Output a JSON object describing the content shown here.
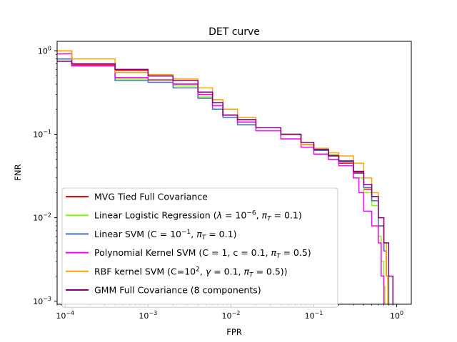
{
  "chart_data": {
    "type": "line",
    "title": "DET curve",
    "xlabel": "FPR",
    "ylabel": "FNR",
    "xscale": "log",
    "yscale": "log",
    "xlim": [
      8e-05,
      1.5
    ],
    "ylim": [
      0.00092,
      1.3
    ],
    "xticks": [
      {
        "value": 0.0001,
        "mant": "10",
        "exp": "−4"
      },
      {
        "value": 0.001,
        "mant": "10",
        "exp": "−3"
      },
      {
        "value": 0.01,
        "mant": "10",
        "exp": "−2"
      },
      {
        "value": 0.1,
        "mant": "10",
        "exp": "−1"
      },
      {
        "value": 1,
        "mant": "10",
        "exp": "0"
      }
    ],
    "yticks": [
      {
        "value": 0.001,
        "mant": "10",
        "exp": "−3"
      },
      {
        "value": 0.01,
        "mant": "10",
        "exp": "−2"
      },
      {
        "value": 0.1,
        "mant": "10",
        "exp": "−1"
      },
      {
        "value": 1,
        "mant": "10",
        "exp": "0"
      }
    ],
    "grid": false,
    "legend_position": "lower-left",
    "series": [
      {
        "name": "MVG Tied Full Covariance",
        "legend_parts": [
          {
            "t": "MVG Tied Full Covariance"
          }
        ],
        "color": "#ff0000",
        "points": [
          [
            8e-05,
            1.0
          ],
          [
            0.00012,
            1.0
          ],
          [
            0.00012,
            0.68
          ],
          [
            0.0004,
            0.68
          ],
          [
            0.0004,
            0.58
          ],
          [
            0.001,
            0.5
          ],
          [
            0.002,
            0.4
          ],
          [
            0.004,
            0.3
          ],
          [
            0.006,
            0.22
          ],
          [
            0.008,
            0.17
          ],
          [
            0.012,
            0.14
          ],
          [
            0.02,
            0.12
          ],
          [
            0.04,
            0.1
          ],
          [
            0.07,
            0.075
          ],
          [
            0.1,
            0.065
          ],
          [
            0.15,
            0.055
          ],
          [
            0.2,
            0.045
          ],
          [
            0.3,
            0.035
          ],
          [
            0.4,
            0.022
          ],
          [
            0.5,
            0.016
          ],
          [
            0.6,
            0.008
          ],
          [
            0.7,
            0.004
          ],
          [
            0.75,
            0.002
          ],
          [
            0.8,
            0.0009
          ]
        ]
      },
      {
        "name": "Linear Logistic Regression (λ = 10^−6, π_T = 0.1)",
        "legend_parts": [
          {
            "t": "Linear Logistic Regression ("
          },
          {
            "t": "λ",
            "i": true
          },
          {
            "t": " = 10"
          },
          {
            "t": "−6",
            "sup": true
          },
          {
            "t": ", "
          },
          {
            "t": "π",
            "i": true
          },
          {
            "t": "T",
            "i": true,
            "sub": true
          },
          {
            "t": " = 0.1)"
          }
        ],
        "color": "#7cfc00",
        "points": [
          [
            8e-05,
            1.0
          ],
          [
            0.00012,
            1.0
          ],
          [
            0.00012,
            0.66
          ],
          [
            0.0004,
            0.66
          ],
          [
            0.0004,
            0.46
          ],
          [
            0.001,
            0.44
          ],
          [
            0.002,
            0.38
          ],
          [
            0.004,
            0.28
          ],
          [
            0.006,
            0.22
          ],
          [
            0.008,
            0.17
          ],
          [
            0.012,
            0.13
          ],
          [
            0.02,
            0.12
          ],
          [
            0.04,
            0.1
          ],
          [
            0.07,
            0.075
          ],
          [
            0.1,
            0.065
          ],
          [
            0.15,
            0.057
          ],
          [
            0.2,
            0.048
          ],
          [
            0.3,
            0.03
          ],
          [
            0.4,
            0.02
          ],
          [
            0.5,
            0.014
          ],
          [
            0.6,
            0.006
          ],
          [
            0.65,
            0.003
          ],
          [
            0.7,
            0.0015
          ],
          [
            0.72,
            0.0009
          ]
        ]
      },
      {
        "name": "Linear SVM (C = 10^−1, π_T = 0.1)",
        "legend_parts": [
          {
            "t": "Linear SVM (C = 10"
          },
          {
            "t": "−1",
            "sup": true
          },
          {
            "t": ", "
          },
          {
            "t": "π",
            "i": true
          },
          {
            "t": "T",
            "i": true,
            "sub": true
          },
          {
            "t": " = 0.1)"
          }
        ],
        "color": "#4472c4",
        "points": [
          [
            8e-05,
            0.8
          ],
          [
            0.00012,
            0.8
          ],
          [
            0.00012,
            0.66
          ],
          [
            0.0004,
            0.66
          ],
          [
            0.0004,
            0.44
          ],
          [
            0.001,
            0.42
          ],
          [
            0.002,
            0.36
          ],
          [
            0.004,
            0.27
          ],
          [
            0.006,
            0.2
          ],
          [
            0.008,
            0.16
          ],
          [
            0.012,
            0.13
          ],
          [
            0.02,
            0.12
          ],
          [
            0.04,
            0.1
          ],
          [
            0.07,
            0.075
          ],
          [
            0.1,
            0.064
          ],
          [
            0.15,
            0.056
          ],
          [
            0.2,
            0.047
          ],
          [
            0.3,
            0.034
          ],
          [
            0.4,
            0.023
          ],
          [
            0.5,
            0.016
          ],
          [
            0.6,
            0.008
          ],
          [
            0.7,
            0.004
          ],
          [
            0.75,
            0.002
          ],
          [
            0.8,
            0.0009
          ]
        ]
      },
      {
        "name": "Polynomial Kernel SVM (C = 1, c = 0.1, π_T = 0.5)",
        "legend_parts": [
          {
            "t": "Polynomial Kernel SVM (C = 1, c = 0.1, "
          },
          {
            "t": "π",
            "i": true
          },
          {
            "t": "T",
            "i": true,
            "sub": true
          },
          {
            "t": " = 0.5)"
          }
        ],
        "color": "#ff00ff",
        "points": [
          [
            8e-05,
            0.92
          ],
          [
            0.00012,
            0.92
          ],
          [
            0.00012,
            0.66
          ],
          [
            0.0004,
            0.66
          ],
          [
            0.0004,
            0.48
          ],
          [
            0.001,
            0.45
          ],
          [
            0.002,
            0.4
          ],
          [
            0.004,
            0.3
          ],
          [
            0.006,
            0.22
          ],
          [
            0.008,
            0.17
          ],
          [
            0.012,
            0.14
          ],
          [
            0.02,
            0.11
          ],
          [
            0.04,
            0.088
          ],
          [
            0.07,
            0.07
          ],
          [
            0.1,
            0.058
          ],
          [
            0.15,
            0.05
          ],
          [
            0.2,
            0.042
          ],
          [
            0.3,
            0.03
          ],
          [
            0.35,
            0.02
          ],
          [
            0.4,
            0.012
          ],
          [
            0.5,
            0.008
          ],
          [
            0.6,
            0.005
          ],
          [
            0.65,
            0.002
          ],
          [
            0.7,
            0.0009
          ]
        ]
      },
      {
        "name": "RBF kernel SVM (C=10^2, γ = 0.1, π_T = 0.5))",
        "legend_parts": [
          {
            "t": "RBF kernel SVM (C=10"
          },
          {
            "t": "2",
            "sup": true
          },
          {
            "t": ", "
          },
          {
            "t": "γ",
            "i": true
          },
          {
            "t": " = 0.1, "
          },
          {
            "t": "π",
            "i": true
          },
          {
            "t": "T",
            "i": true,
            "sub": true
          },
          {
            "t": " = 0.5))"
          }
        ],
        "color": "#ffa500",
        "points": [
          [
            8e-05,
            1.0
          ],
          [
            0.00012,
            1.0
          ],
          [
            0.00012,
            0.8
          ],
          [
            0.0004,
            0.8
          ],
          [
            0.0004,
            0.55
          ],
          [
            0.001,
            0.52
          ],
          [
            0.002,
            0.46
          ],
          [
            0.004,
            0.36
          ],
          [
            0.006,
            0.26
          ],
          [
            0.008,
            0.2
          ],
          [
            0.012,
            0.16
          ],
          [
            0.02,
            0.12
          ],
          [
            0.04,
            0.1
          ],
          [
            0.07,
            0.075
          ],
          [
            0.1,
            0.068
          ],
          [
            0.15,
            0.06
          ],
          [
            0.2,
            0.055
          ],
          [
            0.3,
            0.045
          ],
          [
            0.4,
            0.03
          ],
          [
            0.5,
            0.02
          ],
          [
            0.6,
            0.01
          ],
          [
            0.7,
            0.005
          ],
          [
            0.75,
            0.002
          ],
          [
            0.78,
            0.0009
          ]
        ]
      },
      {
        "name": "GMM Full Covariance (8 components)",
        "legend_parts": [
          {
            "t": "GMM Full Covariance (8 components)"
          }
        ],
        "color": "#800080",
        "points": [
          [
            8e-05,
            0.75
          ],
          [
            0.00012,
            0.75
          ],
          [
            0.00012,
            0.7
          ],
          [
            0.0004,
            0.7
          ],
          [
            0.0004,
            0.6
          ],
          [
            0.001,
            0.5
          ],
          [
            0.002,
            0.44
          ],
          [
            0.004,
            0.32
          ],
          [
            0.006,
            0.24
          ],
          [
            0.008,
            0.17
          ],
          [
            0.012,
            0.15
          ],
          [
            0.02,
            0.12
          ],
          [
            0.04,
            0.1
          ],
          [
            0.07,
            0.08
          ],
          [
            0.1,
            0.066
          ],
          [
            0.15,
            0.055
          ],
          [
            0.2,
            0.048
          ],
          [
            0.3,
            0.036
          ],
          [
            0.4,
            0.025
          ],
          [
            0.5,
            0.018
          ],
          [
            0.6,
            0.01
          ],
          [
            0.7,
            0.005
          ],
          [
            0.8,
            0.002
          ],
          [
            0.9,
            0.0009
          ]
        ]
      }
    ]
  }
}
